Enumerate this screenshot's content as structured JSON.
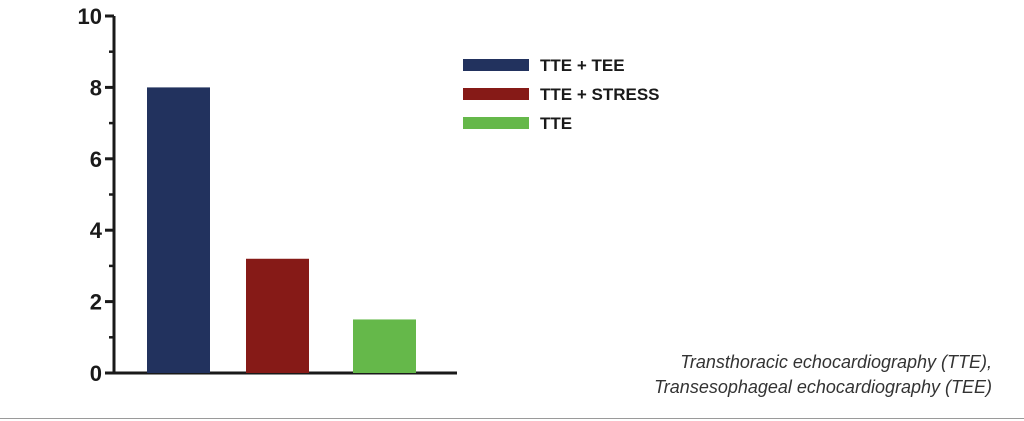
{
  "chart_data": {
    "type": "bar",
    "categories": [
      "TTE + TEE",
      "TTE + STRESS",
      "TTE"
    ],
    "values": [
      8,
      3.2,
      1.5
    ],
    "colors": [
      "#22325e",
      "#861a17",
      "#65b84a"
    ],
    "yticks": [
      0,
      2,
      4,
      6,
      8,
      10
    ],
    "ylim": [
      0,
      10
    ],
    "legend": {
      "placement": "top-right",
      "entries": [
        "TTE + TEE",
        "TTE + STRESS",
        "TTE"
      ]
    },
    "grid": false
  },
  "caption": {
    "line1": "Transthoracic echocardiography (TTE),",
    "line2": "Transesophageal echocardiography (TEE)"
  }
}
